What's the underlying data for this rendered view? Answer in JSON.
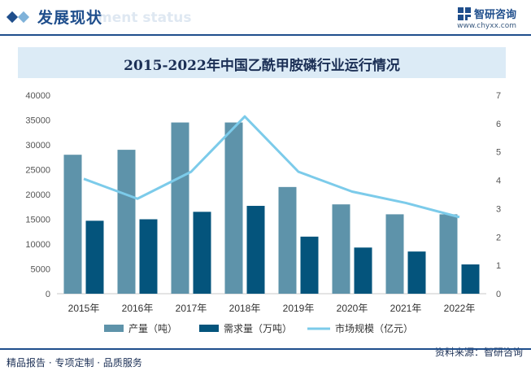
{
  "header": {
    "title": "发展现状",
    "ghost_text": "ment status"
  },
  "brand": {
    "name": "智研咨询",
    "url": "www.chyxx.com"
  },
  "chart_data": {
    "type": "bar",
    "title": "2015-2022年中国乙酰甲胺磷行业运行情况",
    "categories": [
      "2015年",
      "2016年",
      "2017年",
      "2018年",
      "2019年",
      "2020年",
      "2021年",
      "2022年"
    ],
    "series": [
      {
        "name": "产量（吨）",
        "type": "bar",
        "axis": "left",
        "color": "#5e93aa",
        "values": [
          28000,
          29000,
          34500,
          34500,
          21500,
          18000,
          16000,
          16000
        ]
      },
      {
        "name": "需求量（万吨）",
        "type": "bar",
        "axis": "left",
        "color": "#04547c",
        "values": [
          14700,
          15000,
          16500,
          17700,
          11500,
          9300,
          8500,
          5900
        ]
      },
      {
        "name": "市场规模（亿元）",
        "type": "line",
        "axis": "right",
        "color": "#7ccbea",
        "values": [
          4.05,
          3.35,
          4.3,
          6.25,
          4.3,
          3.6,
          3.2,
          2.7
        ]
      }
    ],
    "ylim_left": [
      0,
      40000
    ],
    "yticks_left": [
      0,
      5000,
      10000,
      15000,
      20000,
      25000,
      30000,
      35000,
      40000
    ],
    "ylim_right": [
      0,
      7
    ],
    "yticks_right": [
      0,
      1,
      2,
      3,
      4,
      5,
      6,
      7
    ],
    "grid": false,
    "legend_position": "bottom"
  },
  "footer": {
    "left": "精品报告 · 专项定制 · 品质服务",
    "source": "资料来源：智研咨询"
  },
  "colors": {
    "brand_blue": "#1f4e8c",
    "diamond_1": "#1f4e8c",
    "diamond_2": "#7fb2d9"
  }
}
